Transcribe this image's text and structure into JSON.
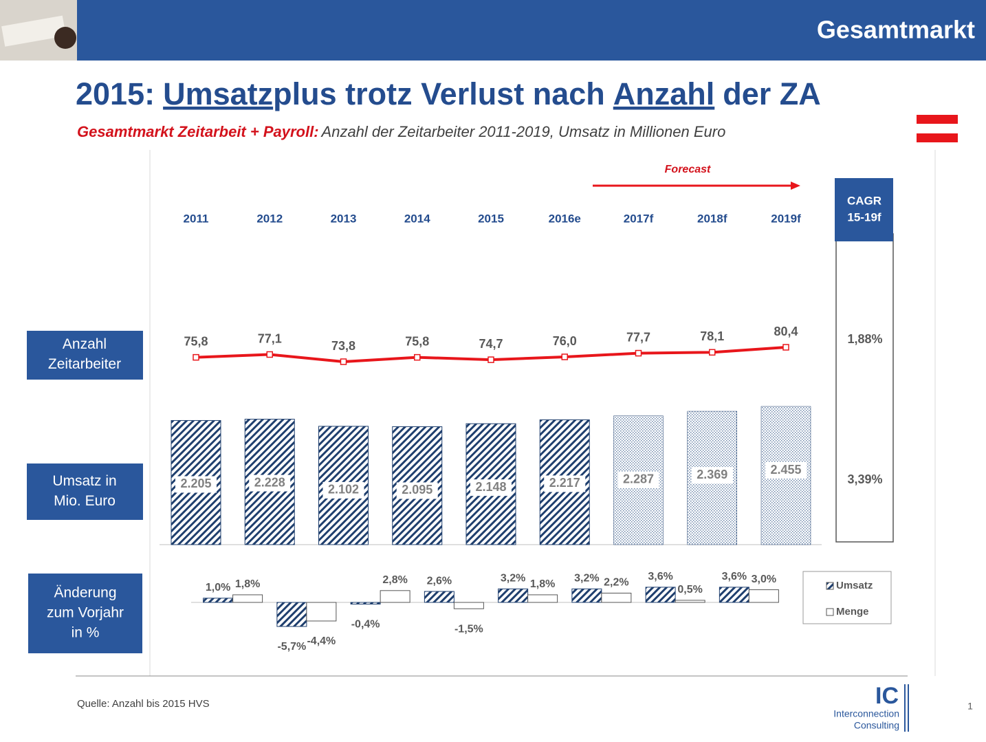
{
  "header": {
    "title": "Gesamtmarkt"
  },
  "title": [
    "2015:",
    "Umsatz",
    "plus trotz Verlust nach",
    "Anzahl",
    "der ZA"
  ],
  "title_underline": [
    false,
    true,
    false,
    true,
    false
  ],
  "subtitle": {
    "lead": "Gesamtmarkt Zeitarbeit + Payroll:",
    "text": "Anzahl der Zeitarbeiter 2011-2019, Umsatz in Millionen  Euro"
  },
  "forecast": "Forecast",
  "row_labels": [
    [
      "Anzahl",
      "Zeitarbeiter"
    ],
    [
      "Umsatz in",
      "Mio. Euro"
    ],
    [
      "Änderung",
      "zum Vorjahr",
      "in %"
    ]
  ],
  "cagr": {
    "header": [
      "CAGR",
      "15-19f"
    ],
    "values": [
      "1,88%",
      "3,39%"
    ]
  },
  "source": "Quelle: Anzahl bis 2015 HVS",
  "logo": {
    "mark": "IC",
    "lines": [
      "Interconnection",
      "Consulting"
    ]
  },
  "page_number": "1",
  "chart_data": [
    {
      "type": "line",
      "categories": [
        "2011",
        "2012",
        "2013",
        "2014",
        "2015",
        "2016e",
        "2017f",
        "2018f",
        "2019f"
      ],
      "values": [
        75.8,
        77.1,
        73.8,
        75.8,
        74.7,
        76.0,
        77.7,
        78.1,
        80.4
      ],
      "value_labels": [
        "75,8",
        "77,1",
        "73,8",
        "75,8",
        "74,7",
        "76,0",
        "77,7",
        "78,1",
        "80,4"
      ],
      "color": "#e8161b"
    },
    {
      "type": "bar",
      "values": [
        2205,
        2228,
        2102,
        2095,
        2148,
        2217,
        2287,
        2369,
        2455
      ],
      "value_labels": [
        "2.205",
        "2.228",
        "2.102",
        "2.095",
        "2.148",
        "2.217",
        "2.287",
        "2.369",
        "2.455"
      ],
      "color": "#1f3f6e",
      "patterns": [
        "diagonal",
        "diagonal",
        "diagonal",
        "diagonal",
        "diagonal",
        "diagonal",
        "dotted",
        "dotted",
        "dotted"
      ]
    },
    {
      "type": "grouped-bar",
      "series": [
        {
          "name": "Umsatz",
          "color": "#1f3f6e",
          "pattern": "diagonal",
          "values": [
            1.0,
            -5.7,
            -0.4,
            2.6,
            3.2,
            3.2,
            3.6,
            3.6
          ],
          "value_labels": [
            "1,0%",
            "-5,7%",
            "-0,4%",
            "2,6%",
            "3,2%",
            "3,2%",
            "3,6%",
            "3,6%"
          ]
        },
        {
          "name": "Menge",
          "color": "#ffffff",
          "pattern": "solid",
          "values": [
            1.8,
            -4.4,
            2.8,
            -1.5,
            1.8,
            2.2,
            0.5,
            3.0
          ],
          "value_labels": [
            "1,8%",
            "-4,4%",
            "2,8%",
            "-1,5%",
            "1,8%",
            "2,2%",
            "0,5%",
            "3,0%"
          ]
        }
      ]
    }
  ]
}
